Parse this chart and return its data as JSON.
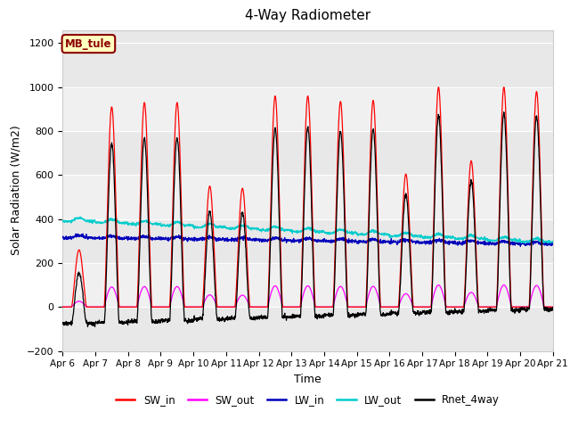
{
  "title": "4-Way Radiometer",
  "xlabel": "Time",
  "ylabel": "Solar Radiation (W/m2)",
  "ylim": [
    -200,
    1260
  ],
  "yticks": [
    -200,
    0,
    200,
    400,
    600,
    800,
    1000,
    1200
  ],
  "station_label": "MB_tule",
  "x_tick_labels": [
    "Apr 6",
    "Apr 7",
    "Apr 8",
    "Apr 9",
    "Apr 10",
    "Apr 11",
    "Apr 12",
    "Apr 13",
    "Apr 14",
    "Apr 15",
    "Apr 16",
    "Apr 17",
    "Apr 18",
    "Apr 19",
    "Apr 20",
    "Apr 21"
  ],
  "SW_in_color": "#ff0000",
  "SW_out_color": "#ff00ff",
  "LW_in_color": "#0000bb",
  "LW_out_color": "#00cccc",
  "Rnet_color": "#000000",
  "bg_color": "#f0f0f0",
  "band_color": "#e0e0e0",
  "band_alt_color": "#f0f0f0"
}
